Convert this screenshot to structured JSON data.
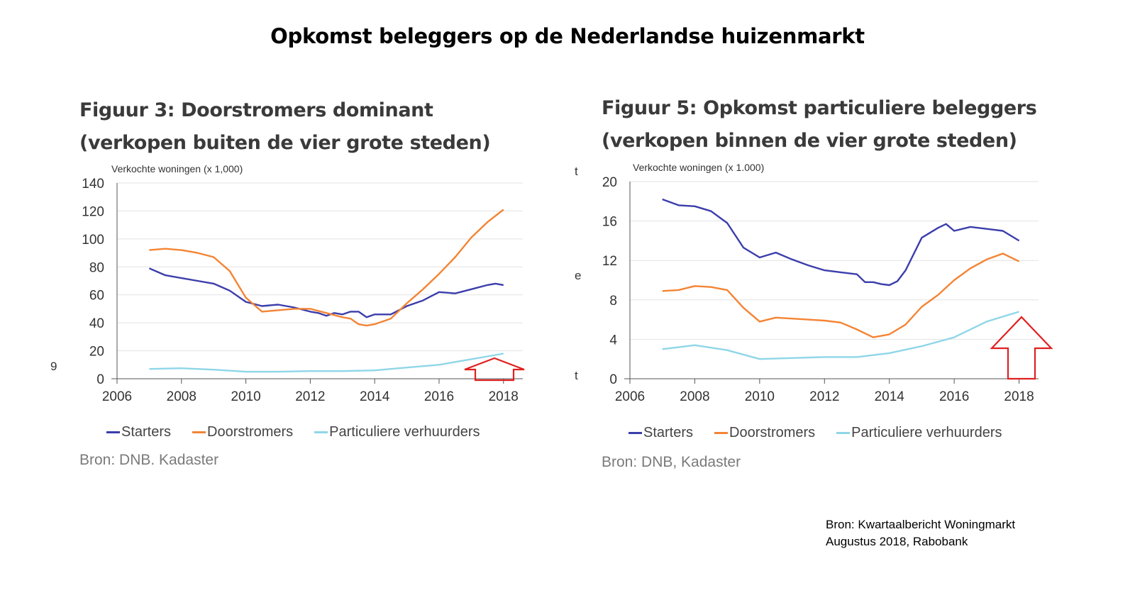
{
  "page_title": "Opkomst beleggers op de Nederlandse huizenmarkt",
  "stray_marks": [
    "9",
    "t",
    "e",
    "t"
  ],
  "credit": {
    "line1": "Bron: Kwartaalbericht Woningmarkt",
    "line2": "Augustus 2018, Rabobank"
  },
  "colors": {
    "starters": "#3b3dab",
    "doorstromers": "#f48434",
    "particuliere": "#8fd6e8",
    "arrow": "#e02020",
    "grid": "#e2e2e2",
    "axis": "#555555"
  },
  "chart_data": [
    {
      "id": "fig3",
      "type": "line",
      "title": "Figuur 3: Doorstromers dominant (verkopen buiten de vier grote steden)",
      "ylabel": "Verkochte woningen (x 1,000)",
      "xlabel": "",
      "xlim": [
        2006,
        2018.6
      ],
      "ylim": [
        0,
        140
      ],
      "xticks": [
        "2006",
        "2008",
        "2010",
        "2012",
        "2014",
        "2016",
        "2018"
      ],
      "yticks": [
        "0",
        "20",
        "40",
        "60",
        "80",
        "100",
        "120",
        "140"
      ],
      "grid": "horizontal",
      "legend_position": "bottom",
      "source": "Bron: DNB. Kadaster",
      "annotation": "red arrow pointing up at end of Particuliere verhuurders",
      "series": [
        {
          "name": "Starters",
          "color_key": "starters",
          "x": [
            2007,
            2007.5,
            2008,
            2008.5,
            2009,
            2009.5,
            2010,
            2010.5,
            2011,
            2011.5,
            2012,
            2012.25,
            2012.5,
            2012.75,
            2013,
            2013.25,
            2013.5,
            2013.75,
            2014,
            2014.5,
            2015,
            2015.5,
            2015.75,
            2016,
            2016.5,
            2017,
            2017.5,
            2017.75,
            2018
          ],
          "y": [
            79,
            74,
            72,
            70,
            68,
            63,
            55,
            52,
            53,
            51,
            48,
            47,
            45,
            47,
            46,
            48,
            48,
            44,
            46,
            46,
            52,
            56,
            59,
            62,
            61,
            64,
            67,
            68,
            67
          ]
        },
        {
          "name": "Doorstromers",
          "color_key": "doorstromers",
          "x": [
            2007,
            2007.5,
            2008,
            2008.5,
            2009,
            2009.5,
            2010,
            2010.5,
            2011,
            2011.5,
            2012,
            2012.5,
            2013,
            2013.25,
            2013.5,
            2013.75,
            2014,
            2014.5,
            2015,
            2015.5,
            2016,
            2016.5,
            2017,
            2017.5,
            2018
          ],
          "y": [
            92,
            93,
            92,
            90,
            87,
            77,
            58,
            48,
            49,
            50,
            50,
            47,
            44,
            43,
            39,
            38,
            39,
            43,
            54,
            64,
            75,
            87,
            101,
            112,
            121
          ]
        },
        {
          "name": "Particuliere verhuurders",
          "color_key": "particuliere",
          "x": [
            2007,
            2008,
            2009,
            2010,
            2011,
            2012,
            2013,
            2014,
            2015,
            2016,
            2017,
            2017.5,
            2018
          ],
          "y": [
            7,
            7.5,
            6.5,
            5,
            5,
            5.5,
            5.5,
            6,
            8,
            10,
            14,
            16,
            18
          ]
        }
      ]
    },
    {
      "id": "fig5",
      "type": "line",
      "title": "Figuur 5: Opkomst particuliere beleggers (verkopen binnen de vier grote steden)",
      "ylabel": "Verkochte woningen (x 1.000)",
      "xlabel": "",
      "xlim": [
        2006,
        2018.6
      ],
      "ylim": [
        0,
        20
      ],
      "xticks": [
        "2006",
        "2008",
        "2010",
        "2012",
        "2014",
        "2016",
        "2018"
      ],
      "yticks": [
        "0",
        "4",
        "8",
        "12",
        "16",
        "20"
      ],
      "grid": "horizontal",
      "legend_position": "bottom",
      "source": "Bron: DNB, Kadaster",
      "annotation": "red arrow pointing up under end of Particuliere verhuurders",
      "series": [
        {
          "name": "Starters",
          "color_key": "starters",
          "x": [
            2007,
            2007.5,
            2008,
            2008.5,
            2009,
            2009.5,
            2010,
            2010.5,
            2011,
            2011.5,
            2012,
            2012.5,
            2013,
            2013.25,
            2013.5,
            2013.75,
            2014,
            2014.25,
            2014.5,
            2015,
            2015.5,
            2015.75,
            2016,
            2016.5,
            2017,
            2017.5,
            2018
          ],
          "y": [
            18.2,
            17.6,
            17.5,
            17.0,
            15.8,
            13.3,
            12.3,
            12.8,
            12.1,
            11.5,
            11.0,
            10.8,
            10.6,
            9.8,
            9.8,
            9.6,
            9.5,
            9.9,
            11.0,
            14.3,
            15.3,
            15.7,
            15.0,
            15.4,
            15.2,
            15.0,
            14.0
          ]
        },
        {
          "name": "Doorstromers",
          "color_key": "doorstromers",
          "x": [
            2007,
            2007.5,
            2008,
            2008.5,
            2009,
            2009.5,
            2010,
            2010.5,
            2011,
            2011.5,
            2012,
            2012.5,
            2013,
            2013.5,
            2014,
            2014.5,
            2015,
            2015.5,
            2016,
            2016.5,
            2017,
            2017.5,
            2018
          ],
          "y": [
            8.9,
            9.0,
            9.4,
            9.3,
            9.0,
            7.2,
            5.8,
            6.2,
            6.1,
            6.0,
            5.9,
            5.7,
            5.0,
            4.2,
            4.5,
            5.5,
            7.3,
            8.5,
            10.0,
            11.2,
            12.1,
            12.7,
            11.9
          ]
        },
        {
          "name": "Particuliere verhuurders",
          "color_key": "particuliere",
          "x": [
            2007,
            2008,
            2009,
            2010,
            2011,
            2012,
            2013,
            2014,
            2015,
            2016,
            2017,
            2018
          ],
          "y": [
            3.0,
            3.4,
            2.9,
            2.0,
            2.1,
            2.2,
            2.2,
            2.6,
            3.3,
            4.2,
            5.8,
            6.8
          ]
        }
      ]
    }
  ]
}
